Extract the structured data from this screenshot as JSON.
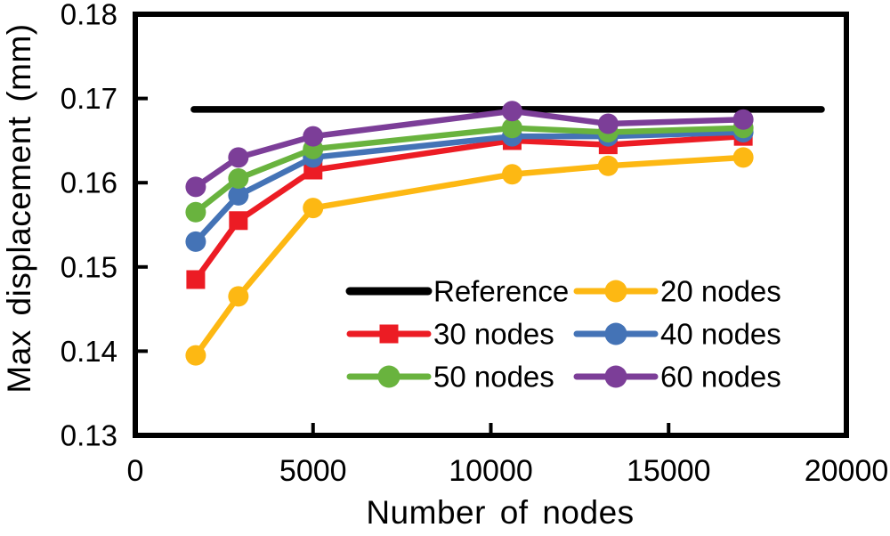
{
  "figure": {
    "background": "#ffffff"
  },
  "chart_data": {
    "type": "line",
    "title": "",
    "xlabel": "Number of nodes",
    "ylabel": "Max displacement (mm)",
    "xlim": [
      0,
      20000
    ],
    "ylim": [
      0.13,
      0.18
    ],
    "x_ticks": [
      0,
      5000,
      10000,
      15000,
      20000
    ],
    "y_ticks": [
      0.13,
      0.14,
      0.15,
      0.16,
      0.17,
      0.18
    ],
    "y_tick_decimals": 2,
    "grid": false,
    "x": [
      1700,
      2900,
      5000,
      10600,
      13300,
      17100
    ],
    "reference": {
      "label": "Reference",
      "value": 0.1687,
      "x_start": 1650,
      "x_end": 19300,
      "color": "#000000"
    },
    "series": [
      {
        "name": "20 nodes",
        "color": "#FDB813",
        "marker": "circle",
        "values": [
          0.1395,
          0.1465,
          0.157,
          0.161,
          0.162,
          0.163
        ]
      },
      {
        "name": "30 nodes",
        "color": "#EC1C24",
        "marker": "square",
        "values": [
          0.1485,
          0.1555,
          0.1615,
          0.165,
          0.1645,
          0.1655
        ]
      },
      {
        "name": "40 nodes",
        "color": "#4473B6",
        "marker": "circle",
        "values": [
          0.153,
          0.1585,
          0.163,
          0.1655,
          0.1655,
          0.166
        ]
      },
      {
        "name": "50 nodes",
        "color": "#69B33E",
        "marker": "circle",
        "values": [
          0.1565,
          0.1605,
          0.164,
          0.1665,
          0.166,
          0.1665
        ]
      },
      {
        "name": "60 nodes",
        "color": "#7C3E98",
        "marker": "circle",
        "values": [
          0.1595,
          0.163,
          0.1655,
          0.1685,
          0.167,
          0.1675
        ]
      }
    ],
    "legend": {
      "position": "inside-bottom-center",
      "columns": [
        [
          "Reference",
          "30 nodes",
          "50 nodes"
        ],
        [
          "20 nodes",
          "40 nodes",
          "60 nodes"
        ]
      ]
    }
  }
}
